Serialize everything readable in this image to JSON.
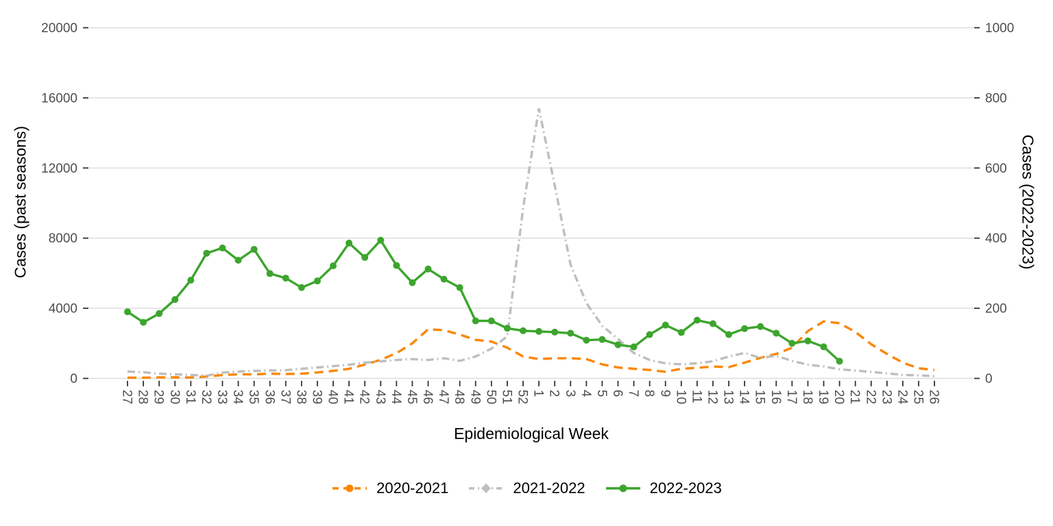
{
  "axes": {
    "left_title": "Cases (past seasons)",
    "right_title": "Cases (2022-2023)",
    "x_title": "Epidemiological Week"
  },
  "legend": {
    "items": [
      {
        "label": "2020-2021"
      },
      {
        "label": "2021-2022"
      },
      {
        "label": "2022-2023"
      }
    ]
  },
  "colors": {
    "orange": "#FB8602",
    "gray": "#BEBEBE",
    "green": "#3CA52D",
    "gridline": "#DCDCDC",
    "tick": "#333333",
    "tick_label": "#4D4D4D"
  },
  "chart_data": {
    "type": "line",
    "title": "",
    "xlabel": "Epidemiological Week",
    "ylabel_left": "Cases (past seasons)",
    "ylabel_right": "Cases (2022-2023)",
    "grid": "horizontal-only",
    "legend_position": "bottom",
    "x_categories": [
      "27",
      "28",
      "29",
      "30",
      "31",
      "32",
      "33",
      "34",
      "35",
      "36",
      "37",
      "38",
      "39",
      "40",
      "41",
      "42",
      "43",
      "44",
      "45",
      "46",
      "47",
      "48",
      "49",
      "50",
      "51",
      "52",
      "1",
      "2",
      "3",
      "4",
      "5",
      "6",
      "7",
      "8",
      "9",
      "10",
      "11",
      "12",
      "13",
      "14",
      "15",
      "16",
      "17",
      "18",
      "19",
      "20",
      "21",
      "22",
      "23",
      "24",
      "25",
      "26"
    ],
    "left_axis": {
      "ticks": [
        0,
        4000,
        8000,
        12000,
        16000,
        20000
      ],
      "range": [
        0,
        20000
      ]
    },
    "right_axis": {
      "ticks": [
        0,
        200,
        400,
        600,
        800,
        1000
      ],
      "range": [
        0,
        1000
      ]
    },
    "series": [
      {
        "name": "2020-2021",
        "color": "#FB8602",
        "style": "dashed",
        "marker": "circle",
        "axis": "left",
        "show_point_markers": false,
        "values": [
          40,
          40,
          60,
          60,
          50,
          110,
          190,
          230,
          230,
          270,
          250,
          270,
          340,
          430,
          545,
          790,
          1060,
          1440,
          2000,
          2800,
          2750,
          2500,
          2200,
          2100,
          1750,
          1250,
          1100,
          1150,
          1150,
          1100,
          800,
          620,
          550,
          480,
          380,
          550,
          600,
          680,
          640,
          900,
          1170,
          1400,
          1750,
          2700,
          3250,
          3150,
          2650,
          1950,
          1400,
          900,
          580,
          480
        ]
      },
      {
        "name": "2021-2022",
        "color": "#BEBEBE",
        "style": "dashdot",
        "marker": "diamond",
        "axis": "left",
        "show_point_markers": false,
        "values": [
          390,
          350,
          270,
          230,
          200,
          160,
          330,
          390,
          430,
          450,
          470,
          550,
          625,
          700,
          780,
          900,
          975,
          1050,
          1100,
          1050,
          1150,
          1000,
          1250,
          1700,
          2400,
          9700,
          15400,
          11000,
          6500,
          4300,
          3000,
          2250,
          1450,
          1050,
          860,
          800,
          860,
          975,
          1250,
          1450,
          1170,
          1290,
          1000,
          780,
          680,
          520,
          450,
          370,
          290,
          200,
          170,
          130
        ]
      },
      {
        "name": "2022-2023",
        "color": "#3CA52D",
        "style": "solid",
        "marker": "circle",
        "axis": "right",
        "show_point_markers": true,
        "values": [
          190,
          160,
          185,
          225,
          280,
          357,
          372,
          337,
          368,
          299,
          286,
          259,
          278,
          321,
          386,
          345,
          394,
          322,
          273,
          312,
          283,
          259,
          164,
          164,
          143,
          136,
          134,
          132,
          129,
          109,
          111,
          96,
          90,
          125,
          152,
          131,
          166,
          156,
          125,
          142,
          148,
          129,
          100,
          107,
          90,
          49,
          null,
          null,
          null,
          null,
          null,
          null
        ]
      }
    ]
  }
}
